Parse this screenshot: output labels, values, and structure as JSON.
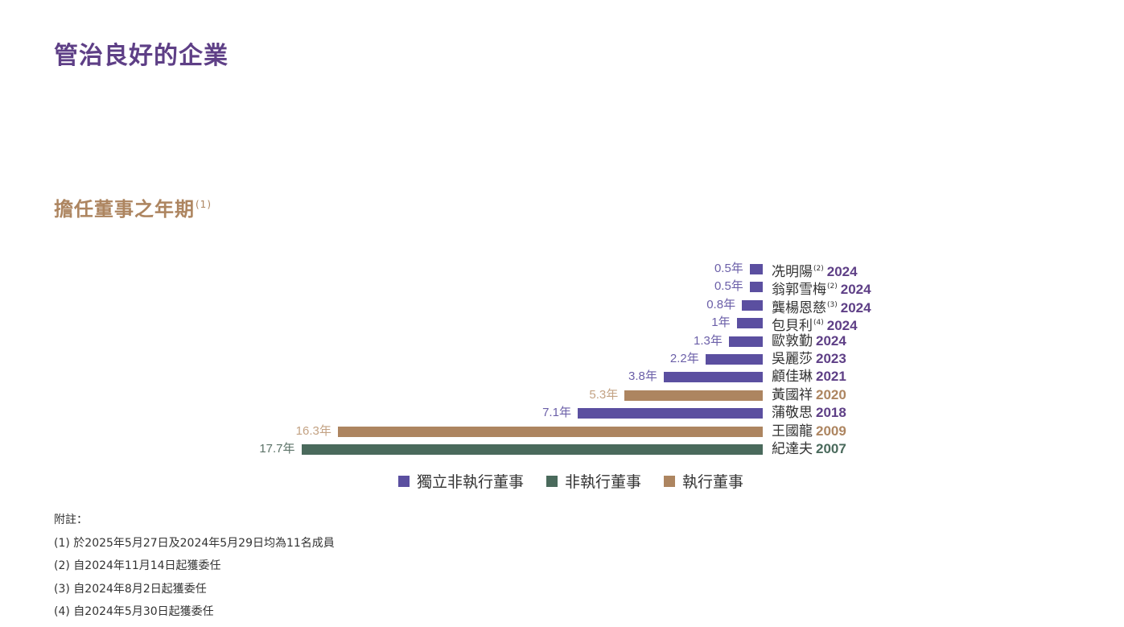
{
  "page_title": "管治良好的企業",
  "section": {
    "title": "擔任董事之年期",
    "footnote_ref": "(1)"
  },
  "colors": {
    "independent_non_executive": "#5b4fa0",
    "non_executive": "#4a6a5c",
    "executive": "#ad8560"
  },
  "rows": [
    {
      "value_label": "0.5年",
      "name": "冼明陽",
      "note": "(2)",
      "year": "2024"
    },
    {
      "value_label": "0.5年",
      "name": "翁郭雪梅",
      "note": "(2)",
      "year": "2024"
    },
    {
      "value_label": "0.8年",
      "name": "龔楊恩慈",
      "note": "(3)",
      "year": "2024"
    },
    {
      "value_label": "1年",
      "name": "包貝利",
      "note": "(4)",
      "year": "2024"
    },
    {
      "value_label": "1.3年",
      "name": "歐敦勤",
      "note": "",
      "year": "2024"
    },
    {
      "value_label": "2.2年",
      "name": "吳麗莎",
      "note": "",
      "year": "2023"
    },
    {
      "value_label": "3.8年",
      "name": "顧佳琳",
      "note": "",
      "year": "2021"
    },
    {
      "value_label": "5.3年",
      "name": "黃國祥",
      "note": "",
      "year": "2020"
    },
    {
      "value_label": "7.1年",
      "name": "蒲敬思",
      "note": "",
      "year": "2018"
    },
    {
      "value_label": "16.3年",
      "name": "王國龍",
      "note": "",
      "year": "2009"
    },
    {
      "value_label": "17.7年",
      "name": "紀達夫",
      "note": "",
      "year": "2007"
    }
  ],
  "legend": [
    {
      "label": "獨立非執行董事",
      "color": "#5b4fa0"
    },
    {
      "label": "非執行董事",
      "color": "#4a6a5c"
    },
    {
      "label": "執行董事",
      "color": "#ad8560"
    }
  ],
  "notes": {
    "heading": "附註：",
    "items": [
      "(1) 於2025年5月27日及2024年5月29日均為11名成員",
      "(2) 自2024年11月14日起獲委任",
      "(3) 自2024年8月2日起獲委任",
      "(4) 自2024年5月30日起獲委任"
    ]
  },
  "chart_data": {
    "type": "bar",
    "orientation": "horizontal",
    "title": "擔任董事之年期(1)",
    "xlabel": "",
    "ylabel": "",
    "unit": "年",
    "categories": [
      "冼明陽 2024",
      "翁郭雪梅 2024",
      "龔楊恩慈 2024",
      "包貝利 2024",
      "歐敦勤 2024",
      "吳麗莎 2023",
      "顧佳琳 2021",
      "黃國祥 2020",
      "蒲敬思 2018",
      "王國龍 2009",
      "紀達夫 2007"
    ],
    "values": [
      0.5,
      0.5,
      0.8,
      1,
      1.3,
      2.2,
      3.8,
      5.3,
      7.1,
      16.3,
      17.7
    ],
    "category_types": [
      "獨立非執行董事",
      "獨立非執行董事",
      "獨立非執行董事",
      "獨立非執行董事",
      "獨立非執行董事",
      "獨立非執行董事",
      "獨立非執行董事",
      "執行董事",
      "獨立非執行董事",
      "執行董事",
      "非執行董事"
    ],
    "legend": [
      "獨立非執行董事",
      "非執行董事",
      "執行董事"
    ],
    "legend_position": "bottom",
    "grid": false,
    "xlim": [
      0,
      17.7
    ]
  }
}
